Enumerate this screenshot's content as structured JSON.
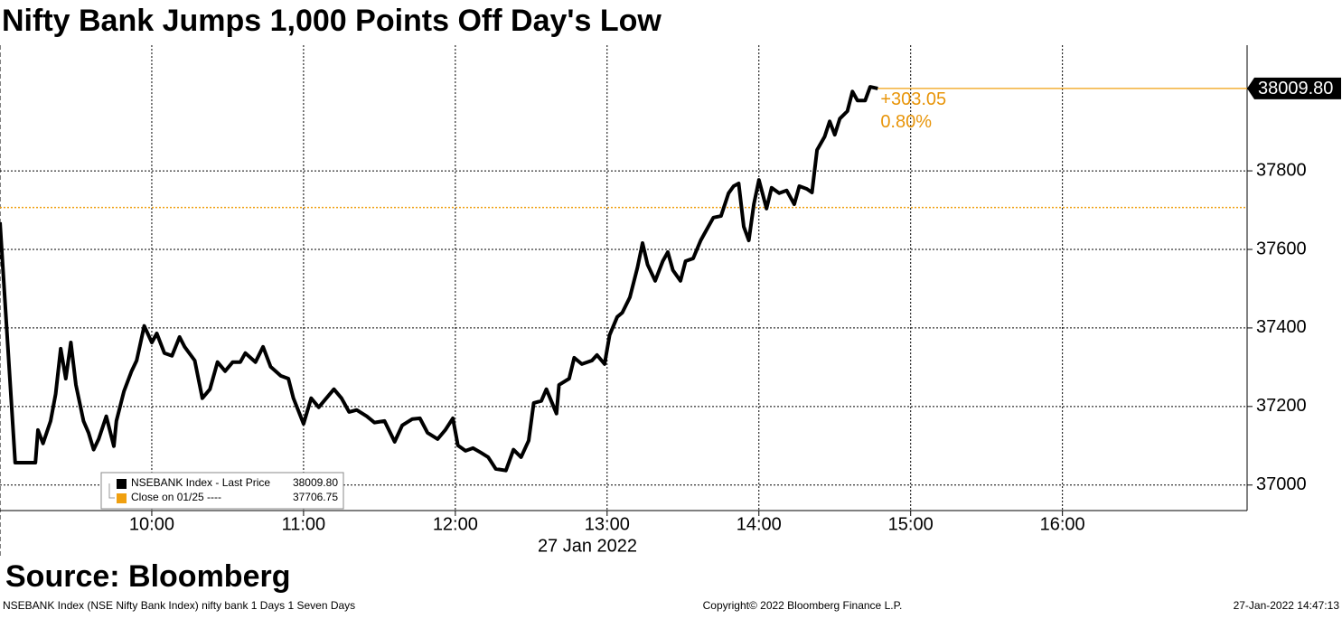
{
  "chart_data": {
    "type": "line",
    "title": "Nifty Bank Jumps 1,000 Points Off Day's Low",
    "xlabel": "27 Jan 2022",
    "source": "Source: Bloomberg",
    "footer_left": "NSEBANK Index (NSE Nifty Bank Index) nifty bank 1 Days 1 Seven Days",
    "footer_center": "Copyright© 2022 Bloomberg Finance L.P.",
    "footer_right": "27-Jan-2022 14:47:13",
    "xlim": [
      540,
      1033
    ],
    "xticks": [
      {
        "value": 600,
        "label": "10:00"
      },
      {
        "value": 660,
        "label": "11:00"
      },
      {
        "value": 720,
        "label": "12:00"
      },
      {
        "value": 780,
        "label": "13:00"
      },
      {
        "value": 840,
        "label": "14:00"
      },
      {
        "value": 900,
        "label": "15:00"
      },
      {
        "value": 960,
        "label": "16:00"
      }
    ],
    "ylim": [
      36935,
      38120
    ],
    "yticks": [
      37000,
      37200,
      37400,
      37600,
      37800
    ],
    "grid": true,
    "series": [
      {
        "name": "NSEBANK Index - Last Price",
        "color": "#000000",
        "x": [
          540,
          546,
          554,
          555,
          557,
          560,
          562,
          564,
          566,
          568,
          570,
          573,
          575,
          577,
          579,
          582,
          585,
          586,
          589,
          592,
          594,
          597,
          600,
          602,
          605,
          608,
          611,
          613,
          617,
          620,
          623,
          626,
          629,
          632,
          635,
          637,
          641,
          644,
          647,
          651,
          654,
          656,
          660,
          663,
          666,
          669,
          672,
          675,
          678,
          681,
          685,
          688,
          692,
          696,
          699,
          703,
          706,
          709,
          713,
          716,
          719,
          721,
          724,
          727,
          730,
          733,
          736,
          740,
          743,
          746,
          749,
          751,
          754,
          756,
          760,
          761,
          765,
          767,
          770,
          774,
          776,
          779,
          781,
          784,
          786,
          789,
          792,
          794,
          796,
          799,
          802,
          804,
          806,
          809,
          811,
          814,
          817,
          820,
          822,
          825,
          828,
          830,
          832,
          834,
          836,
          838,
          840,
          843,
          845,
          848,
          851,
          854,
          856,
          859,
          861,
          863,
          866,
          868,
          870,
          872,
          875,
          877,
          879,
          882,
          884,
          887
        ],
        "values": [
          37669,
          37057,
          37057,
          37140,
          37106,
          37163,
          37232,
          37347,
          37271,
          37363,
          37255,
          37163,
          37133,
          37090,
          37117,
          37175,
          37099,
          37163,
          37239,
          37290,
          37317,
          37405,
          37363,
          37386,
          37336,
          37329,
          37377,
          37352,
          37317,
          37221,
          37244,
          37313,
          37290,
          37313,
          37313,
          37336,
          37313,
          37352,
          37301,
          37278,
          37271,
          37221,
          37156,
          37221,
          37198,
          37221,
          37244,
          37221,
          37186,
          37191,
          37175,
          37159,
          37163,
          37110,
          37152,
          37168,
          37170,
          37133,
          37117,
          37140,
          37170,
          37101,
          37087,
          37094,
          37083,
          37071,
          37041,
          37037,
          37090,
          37071,
          37113,
          37209,
          37214,
          37244,
          37182,
          37255,
          37271,
          37324,
          37308,
          37317,
          37331,
          37308,
          37382,
          37428,
          37439,
          37478,
          37554,
          37616,
          37561,
          37520,
          37570,
          37593,
          37547,
          37520,
          37570,
          37577,
          37623,
          37658,
          37681,
          37685,
          37743,
          37761,
          37768,
          37658,
          37623,
          37715,
          37777,
          37704,
          37757,
          37743,
          37750,
          37715,
          37761,
          37754,
          37745,
          37853,
          37887,
          37926,
          37892,
          37933,
          37952,
          38002,
          37979,
          37979,
          38014,
          38009.8
        ],
        "last": {
          "value": 38009.8,
          "label": "38009.80"
        }
      }
    ],
    "reference_lines": [
      {
        "name": "Close on 01/25 ----",
        "value": 37706.75,
        "label": "37706.75",
        "color": "#f0a010"
      }
    ],
    "change": {
      "value": 303.05,
      "label": "+303.05"
    },
    "change_percent": {
      "value": 0.8,
      "label": "0.80%"
    },
    "annotation_color": "#e8950a"
  }
}
